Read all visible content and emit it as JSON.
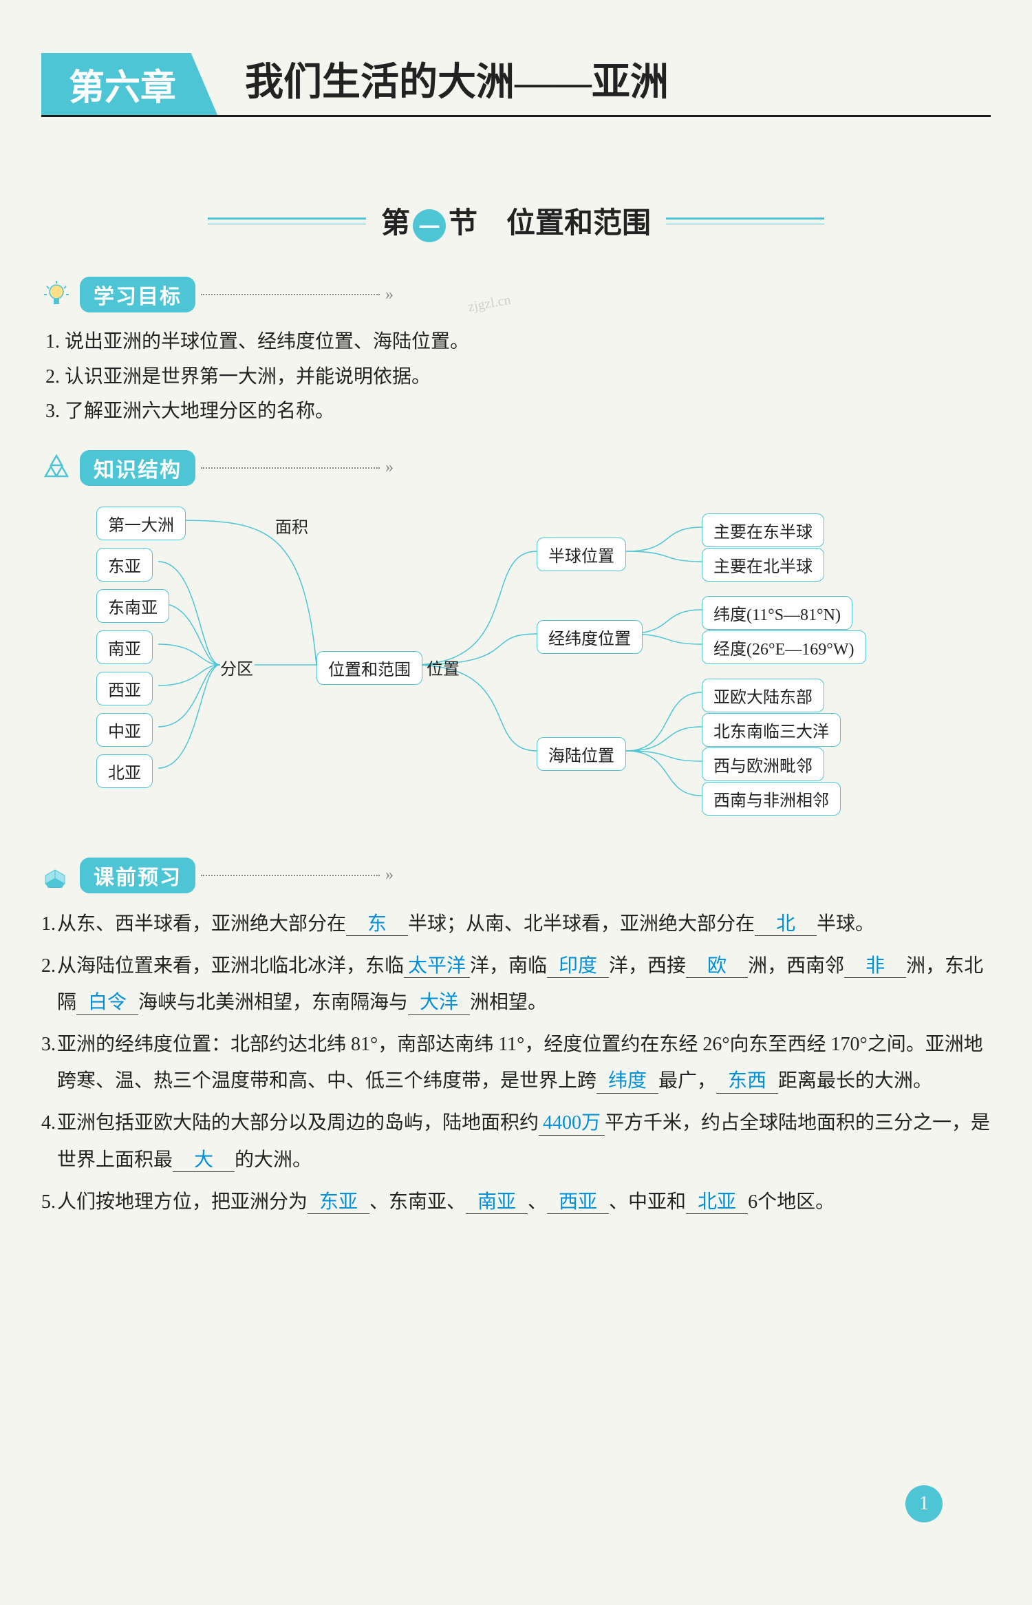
{
  "chapter": {
    "tab": "第六章",
    "title": "我们生活的大洲——亚洲"
  },
  "section": {
    "prefix": "第",
    "dot": "一",
    "suffix": "节　位置和范围"
  },
  "watermark": "zjgzl.cn",
  "blocks": {
    "objectives": {
      "label": "学习目标"
    },
    "structure": {
      "label": "知识结构"
    },
    "preview": {
      "label": "课前预习"
    }
  },
  "objectives": [
    "1. 说出亚洲的半球位置、经纬度位置、海陆位置。",
    "2. 认识亚洲是世界第一大洲，并能说明依据。",
    "3. 了解亚洲六大地理分区的名称。"
  ],
  "diagram": {
    "center": "位置和范围",
    "leftLabel": "分区",
    "leftItems": [
      "第一大洲",
      "东亚",
      "东南亚",
      "南亚",
      "西亚",
      "中亚",
      "北亚"
    ],
    "areaLabel": "面积",
    "rightLabel": "位置",
    "rightGroups": [
      {
        "title": "半球位置",
        "items": [
          "主要在东半球",
          "主要在北半球"
        ]
      },
      {
        "title": "经纬度位置",
        "items": [
          "纬度(11°S—81°N)",
          "经度(26°E—169°W)"
        ]
      },
      {
        "title": "海陆位置",
        "items": [
          "亚欧大陆东部",
          "北东南临三大洋",
          "西与欧洲毗邻",
          "西南与非洲相邻"
        ]
      }
    ]
  },
  "preview": [
    {
      "num": "1.",
      "segments": [
        {
          "t": "从东、西半球看，亚洲绝大部分在"
        },
        {
          "b": "东"
        },
        {
          "t": "半球；从南、北半球看，亚洲绝大部分在"
        },
        {
          "b": "北"
        },
        {
          "t": "半球。"
        }
      ]
    },
    {
      "num": "2.",
      "segments": [
        {
          "t": "从海陆位置来看，亚洲北临北冰洋，东临"
        },
        {
          "b": "太平洋"
        },
        {
          "t": "洋，南临"
        },
        {
          "b": "印度"
        },
        {
          "t": "洋，西接"
        },
        {
          "b": "欧"
        },
        {
          "t": "洲，西南邻"
        },
        {
          "b": "非"
        },
        {
          "t": "洲，东北隔"
        },
        {
          "b": "白令"
        },
        {
          "t": "海峡与北美洲相望，东南隔海与"
        },
        {
          "b": "大洋"
        },
        {
          "t": "洲相望。"
        }
      ]
    },
    {
      "num": "3.",
      "segments": [
        {
          "t": "亚洲的经纬度位置：北部约达北纬 81°，南部达南纬 11°，经度位置约在东经 26°向东至西经 170°之间。亚洲地跨寒、温、热三个温度带和高、中、低三个纬度带，是世界上跨"
        },
        {
          "b": "纬度"
        },
        {
          "t": "最广，"
        },
        {
          "b": "东西"
        },
        {
          "t": "距离最长的大洲。"
        }
      ]
    },
    {
      "num": "4.",
      "segments": [
        {
          "t": "亚洲包括亚欧大陆的大部分以及周边的岛屿，陆地面积约"
        },
        {
          "b": "4400万"
        },
        {
          "t": "平方千米，约占全球陆地面积的三分之一，是世界上面积最"
        },
        {
          "b": "大"
        },
        {
          "t": "的大洲。"
        }
      ]
    },
    {
      "num": "5.",
      "segments": [
        {
          "t": "人们按地理方位，把亚洲分为"
        },
        {
          "b": "东亚"
        },
        {
          "t": "、东南亚、"
        },
        {
          "b": "南亚"
        },
        {
          "t": "、"
        },
        {
          "b": "西亚"
        },
        {
          "t": "、中亚和"
        },
        {
          "b": "北亚"
        },
        {
          "t": "6个地区。"
        }
      ]
    }
  ],
  "pageNumber": "1"
}
